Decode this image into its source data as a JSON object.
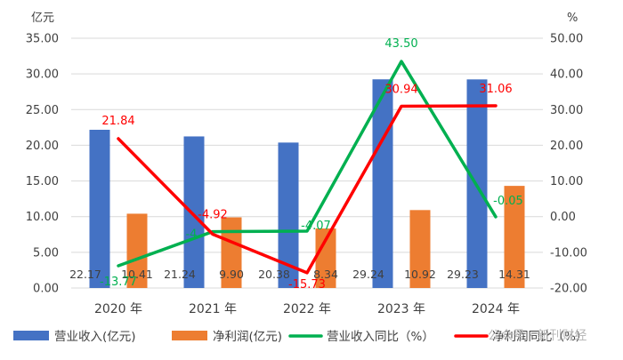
{
  "chart_data": {
    "type": "bar",
    "categories": [
      "2020 年",
      "2021 年",
      "2022 年",
      "2023 年",
      "2024 年"
    ],
    "left_axis": {
      "unit": "亿元",
      "range": [
        0,
        35
      ],
      "ticks": [
        "0.00",
        "5.00",
        "10.00",
        "15.00",
        "20.00",
        "25.00",
        "30.00",
        "35.00"
      ]
    },
    "right_axis": {
      "unit": "%",
      "range": [
        -20,
        50
      ],
      "ticks": [
        "-20.00",
        "-10.00",
        "0.00",
        "10.00",
        "20.00",
        "30.00",
        "40.00",
        "50.00"
      ]
    },
    "grid": true,
    "legend_position": "bottom",
    "series": [
      {
        "name": "营业收入(亿元)",
        "type": "bar",
        "axis": "left",
        "color": "#4472c4",
        "values": [
          22.17,
          21.24,
          20.38,
          29.24,
          29.23
        ],
        "labels": [
          "22.17",
          "21.24",
          "20.38",
          "29.24",
          "29.23"
        ]
      },
      {
        "name": "净利润(亿元)",
        "type": "bar",
        "axis": "left",
        "color": "#ed7d31",
        "values": [
          10.41,
          9.9,
          8.34,
          10.92,
          14.31
        ],
        "labels": [
          "10.41",
          "9.90",
          "8.34",
          "10.92",
          "14.31"
        ]
      },
      {
        "name": "营业收入同比（%）",
        "type": "line",
        "axis": "right",
        "color": "#00b050",
        "values": [
          -13.77,
          -4.2,
          -4.07,
          43.5,
          -0.05
        ],
        "labels": [
          "-13.77",
          "-4.",
          "-4.07",
          "43.50",
          "-0.05"
        ]
      },
      {
        "name": "净利润同比（%）",
        "type": "line",
        "axis": "right",
        "color": "#ff0000",
        "values": [
          21.84,
          -4.92,
          -15.73,
          30.94,
          31.06
        ],
        "labels": [
          "21.84",
          "-4.92",
          "-15.73",
          "30.94",
          "31.06"
        ]
      }
    ]
  },
  "watermark": "公众号 · 新刊财经"
}
